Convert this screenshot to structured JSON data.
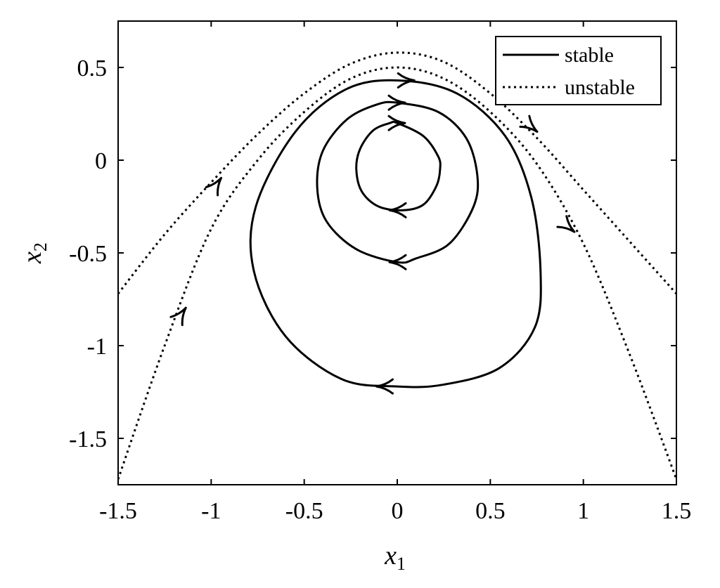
{
  "chart_data": {
    "type": "line",
    "title": "",
    "xlabel": "x",
    "xlabel_sub": "1",
    "ylabel": "x",
    "ylabel_sub": "2",
    "xlim": [
      -1.5,
      1.5
    ],
    "ylim": [
      -1.75,
      0.75
    ],
    "xticks": [
      -1.5,
      -1,
      -0.5,
      0,
      0.5,
      1,
      1.5
    ],
    "xtick_labels": [
      "-1.5",
      "-1",
      "-0.5",
      "0",
      "0.5",
      "1",
      "1.5"
    ],
    "yticks": [
      -1.5,
      -1,
      -0.5,
      0,
      0.5
    ],
    "ytick_labels": [
      "-1.5",
      "-1",
      "-0.5",
      "0",
      "0.5"
    ],
    "grid": false,
    "legend_position": "top-right",
    "legend": [
      {
        "label": "stable",
        "style": "solid"
      },
      {
        "label": "unstable",
        "style": "dotted"
      }
    ],
    "series": [
      {
        "legend": "stable",
        "style": "solid",
        "closed": true,
        "x": [
          0.0,
          0.14,
          0.22,
          0.23,
          0.21,
          0.14,
          0.03,
          -0.1,
          -0.19,
          -0.22,
          -0.2,
          -0.13,
          -0.04
        ],
        "y": [
          0.2,
          0.13,
          0.02,
          -0.05,
          -0.14,
          -0.24,
          -0.27,
          -0.25,
          -0.17,
          -0.05,
          0.06,
          0.16,
          0.2
        ]
      },
      {
        "legend": "stable",
        "style": "solid",
        "closed": true,
        "x": [
          0.0,
          0.22,
          0.37,
          0.43,
          0.41,
          0.28,
          0.1,
          0.0,
          -0.22,
          -0.38,
          -0.43,
          -0.4,
          -0.27,
          -0.11
        ],
        "y": [
          0.31,
          0.26,
          0.12,
          -0.08,
          -0.25,
          -0.45,
          -0.53,
          -0.55,
          -0.48,
          -0.33,
          -0.15,
          0.05,
          0.22,
          0.3
        ]
      },
      {
        "legend": "stable",
        "style": "solid",
        "closed": true,
        "x": [
          0.0,
          0.32,
          0.58,
          0.72,
          0.77,
          0.74,
          0.55,
          0.25,
          0.0,
          -0.3,
          -0.6,
          -0.77,
          -0.76,
          -0.55,
          -0.28
        ],
        "y": [
          0.43,
          0.36,
          0.13,
          -0.2,
          -0.6,
          -0.9,
          -1.12,
          -1.21,
          -1.22,
          -1.18,
          -0.95,
          -0.6,
          -0.25,
          0.15,
          0.38
        ]
      },
      {
        "legend": "unstable",
        "style": "dotted",
        "closed": false,
        "x": [
          -1.5,
          -1.25,
          -1.0,
          -0.75,
          -0.5,
          -0.25,
          0.0,
          0.25,
          0.5,
          0.75,
          1.0,
          1.25,
          1.5
        ],
        "y": [
          -0.72,
          -0.4,
          -0.12,
          0.14,
          0.36,
          0.52,
          0.58,
          0.53,
          0.36,
          0.12,
          -0.16,
          -0.44,
          -0.72
        ]
      },
      {
        "legend": "unstable",
        "style": "dotted",
        "closed": false,
        "x": [
          -1.5,
          -1.25,
          -1.0,
          -0.75,
          -0.5,
          -0.25,
          0.0,
          0.25,
          0.5,
          0.75,
          1.0,
          1.25,
          1.5
        ],
        "y": [
          -1.72,
          -1.0,
          -0.37,
          0.0,
          0.26,
          0.44,
          0.5,
          0.44,
          0.26,
          -0.02,
          -0.45,
          -1.05,
          -1.72
        ]
      }
    ],
    "arrows": [
      {
        "x": 0.05,
        "y": 0.43,
        "direction": "right"
      },
      {
        "x": 0.0,
        "y": 0.31,
        "direction": "right"
      },
      {
        "x": 0.0,
        "y": 0.2,
        "direction": "right"
      },
      {
        "x": 0.0,
        "y": -0.27,
        "direction": "left"
      },
      {
        "x": 0.0,
        "y": -0.55,
        "direction": "left"
      },
      {
        "x": -0.07,
        "y": -1.22,
        "direction": "left"
      },
      {
        "x": -0.97,
        "y": -0.13,
        "direction": "up-right"
      },
      {
        "x": -1.16,
        "y": -0.83,
        "direction": "up-right"
      },
      {
        "x": 0.72,
        "y": 0.18,
        "direction": "down-right"
      },
      {
        "x": 0.92,
        "y": -0.36,
        "direction": "down-right"
      }
    ]
  }
}
